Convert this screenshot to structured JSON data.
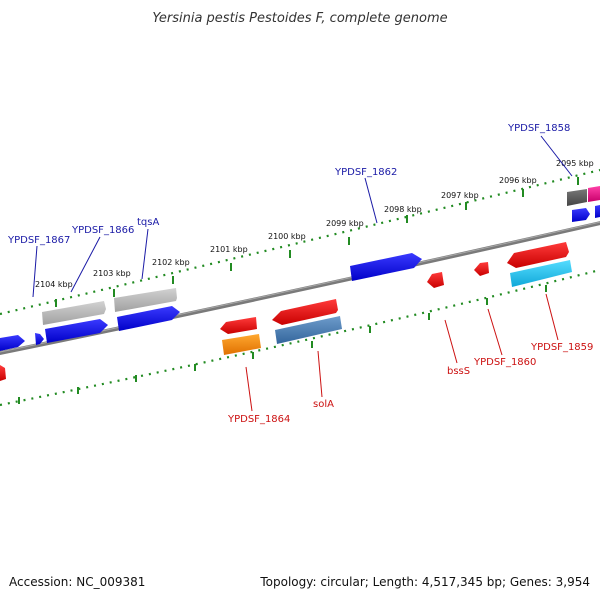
{
  "title": "Yersinia pestis Pestoides F, complete genome",
  "footer": {
    "accession": "Accession: NC_009381",
    "summary": "Topology: circular; Length: 4,517,345 bp; Genes: 3,954"
  },
  "colors": {
    "backbone": "#808080",
    "tick": "#228B22",
    "forward_label": "#1a1aa6",
    "reverse_label": "#cc1111"
  },
  "scale_ticks": [
    "2095 kbp",
    "2096 kbp",
    "2097 kbp",
    "2098 kbp",
    "2099 kbp",
    "2100 kbp",
    "2101 kbp",
    "2102 kbp",
    "2103 kbp",
    "2104 kbp"
  ],
  "gene_labels": [
    {
      "text": "YPDSF_1858",
      "strand": "forward"
    },
    {
      "text": "YPDSF_1862",
      "strand": "forward"
    },
    {
      "text": "tqsA",
      "strand": "forward"
    },
    {
      "text": "YPDSF_1866",
      "strand": "forward"
    },
    {
      "text": "YPDSF_1867",
      "strand": "forward"
    },
    {
      "text": "YPDSF_1859",
      "strand": "reverse"
    },
    {
      "text": "YPDSF_1860",
      "strand": "reverse"
    },
    {
      "text": "bssS",
      "strand": "reverse"
    },
    {
      "text": "solA",
      "strand": "reverse"
    },
    {
      "text": "YPDSF_1864",
      "strand": "reverse"
    }
  ],
  "features": [
    {
      "kind": "gene",
      "strand": "forward",
      "color": "#0000ee"
    },
    {
      "kind": "gene",
      "strand": "forward",
      "color": "#0000ee"
    },
    {
      "kind": "gene",
      "strand": "forward",
      "color": "#0000ee"
    },
    {
      "kind": "gene",
      "strand": "forward",
      "color": "#0000ee"
    },
    {
      "kind": "gene",
      "strand": "forward",
      "color": "#0000ee"
    },
    {
      "kind": "gene",
      "strand": "forward",
      "color": "#0000ee"
    },
    {
      "kind": "gene",
      "strand": "forward",
      "color": "#0000ee"
    },
    {
      "kind": "gene",
      "strand": "forward",
      "color": "#e6007e"
    },
    {
      "kind": "cds",
      "strand": "forward",
      "color": "#b4b4b4"
    },
    {
      "kind": "cds",
      "strand": "forward",
      "color": "#b4b4b4"
    },
    {
      "kind": "cds",
      "strand": "forward",
      "color": "#555555"
    },
    {
      "kind": "gene",
      "strand": "reverse",
      "color": "#ee0000"
    },
    {
      "kind": "gene",
      "strand": "reverse",
      "color": "#ee0000"
    },
    {
      "kind": "gene",
      "strand": "reverse",
      "color": "#ee0000"
    },
    {
      "kind": "gene",
      "strand": "reverse",
      "color": "#ee0000"
    },
    {
      "kind": "gene",
      "strand": "reverse",
      "color": "#ee0000"
    },
    {
      "kind": "gene",
      "strand": "reverse",
      "color": "#ee0000"
    },
    {
      "kind": "cds",
      "strand": "reverse",
      "color": "#1ec8ee"
    },
    {
      "kind": "cds",
      "strand": "reverse",
      "color": "#4a7fb5"
    },
    {
      "kind": "cds",
      "strand": "reverse",
      "color": "#ff8c00"
    }
  ]
}
